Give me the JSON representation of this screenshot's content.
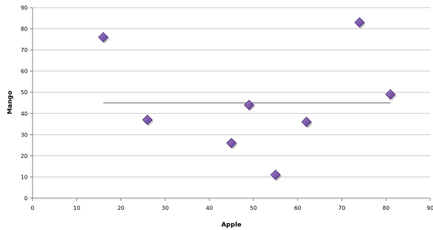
{
  "chart_data": {
    "type": "scatter",
    "title": "",
    "xlabel": "Apple",
    "ylabel": "Mango",
    "xlim": [
      0,
      90
    ],
    "ylim": [
      0,
      90
    ],
    "xticks": [
      "0",
      "10",
      "20",
      "30",
      "40",
      "50",
      "60",
      "70",
      "80",
      "90"
    ],
    "yticks": [
      "0",
      "10",
      "20",
      "30",
      "40",
      "50",
      "60",
      "70",
      "80",
      "90"
    ],
    "grid": "horizontal",
    "legend": "none",
    "marker": "diamond",
    "colors": {
      "marker": "#7b52a8",
      "marker_edge": "#4b2f75",
      "trendline": "#8c8c8c",
      "grid": "#c8c8c8"
    },
    "points": [
      {
        "x": 16,
        "y": 76
      },
      {
        "x": 26,
        "y": 37
      },
      {
        "x": 45,
        "y": 26
      },
      {
        "x": 49,
        "y": 44
      },
      {
        "x": 55,
        "y": 11
      },
      {
        "x": 62,
        "y": 36
      },
      {
        "x": 74,
        "y": 83
      },
      {
        "x": 81,
        "y": 49
      }
    ],
    "trendline": {
      "x": [
        16,
        81
      ],
      "y": [
        45,
        45
      ]
    }
  }
}
